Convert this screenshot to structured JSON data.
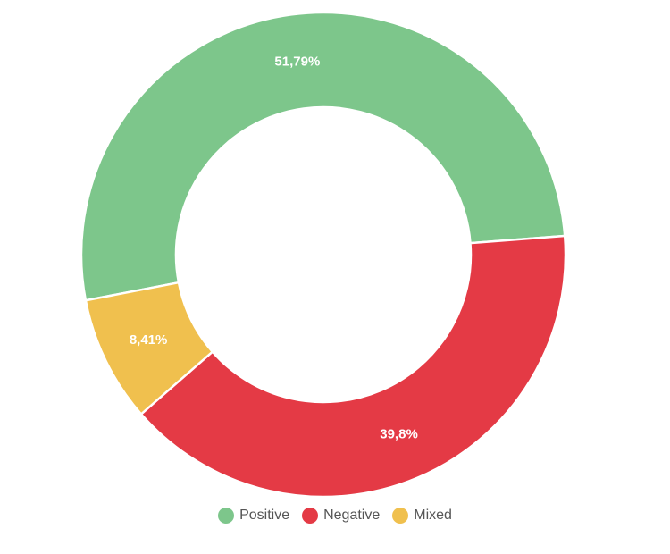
{
  "chart_data": {
    "type": "pie",
    "variant": "donut",
    "legend_position": "bottom",
    "slices": [
      {
        "name": "Positive",
        "value": 51.79,
        "label": "51,79%",
        "color": "#7dc68b"
      },
      {
        "name": "Negative",
        "value": 39.8,
        "label": "39,8%",
        "color": "#e43a45"
      },
      {
        "name": "Mixed",
        "value": 8.41,
        "label": "8,41%",
        "color": "#f0c04e"
      }
    ]
  }
}
